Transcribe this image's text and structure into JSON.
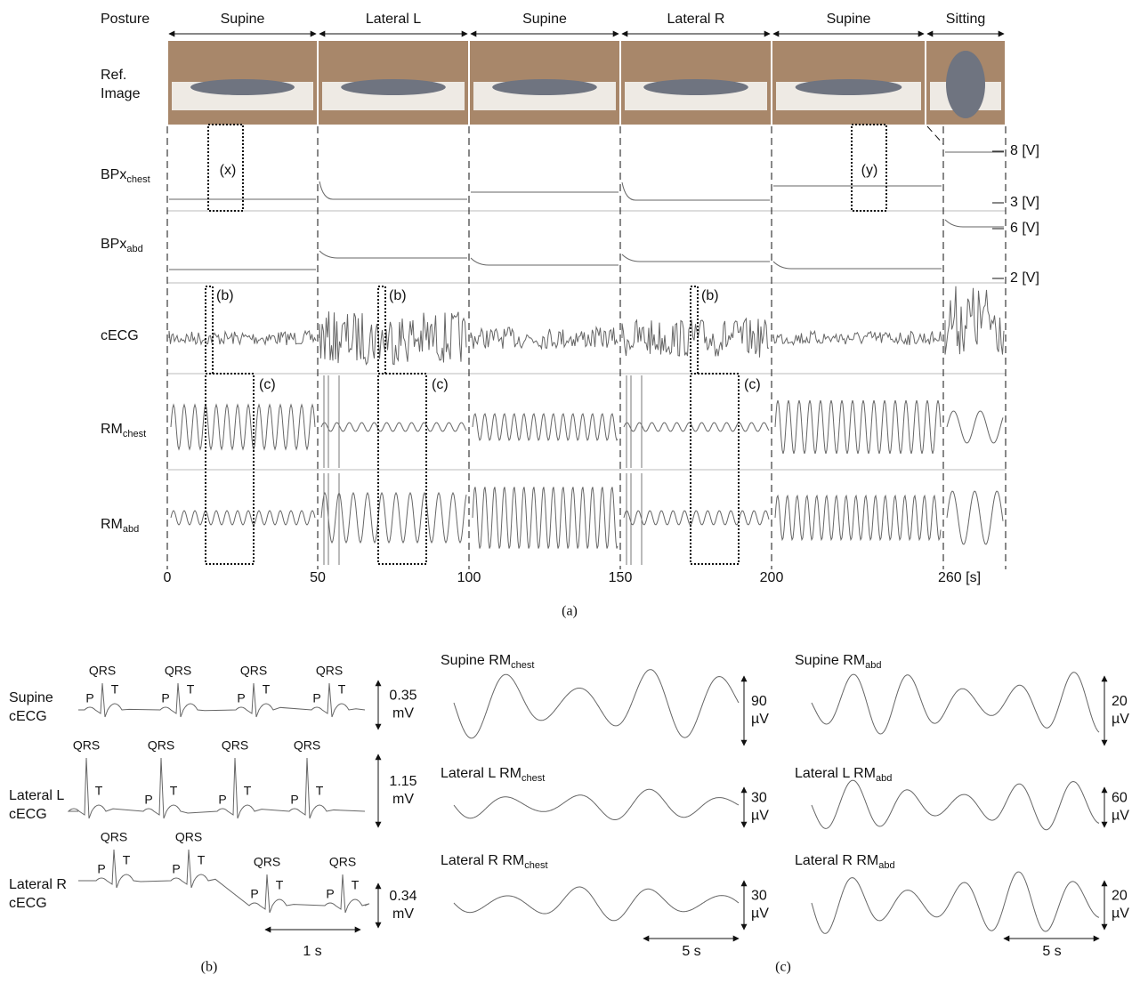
{
  "figure_a": {
    "posture_label": "Posture",
    "postures": [
      "Supine",
      "Lateral L",
      "Supine",
      "Lateral R",
      "Supine",
      "Sitting"
    ],
    "ref_image_label": [
      "Ref.",
      "Image"
    ],
    "rows": [
      {
        "main": "BPx",
        "sub": "chest"
      },
      {
        "main": "BPx",
        "sub": "abd"
      },
      {
        "main": "cECG",
        "sub": ""
      },
      {
        "main": "RM",
        "sub": "chest"
      },
      {
        "main": "RM",
        "sub": "abd"
      }
    ],
    "annotation_x": "(x)",
    "annotation_y": "(y)",
    "annotations_b": [
      "(b)",
      "(b)",
      "(b)"
    ],
    "annotations_c": [
      "(c)",
      "(c)",
      "(c)"
    ],
    "voltage_labels": [
      "8 [V]",
      "3 [V]",
      "6 [V]",
      "2 [V]"
    ],
    "time_ticks": [
      "0",
      "50",
      "100",
      "150",
      "200",
      "260 [s]"
    ],
    "caption": "(a)"
  },
  "figure_b": {
    "traces": [
      {
        "name": [
          "Supine",
          "cECG"
        ],
        "scale": [
          "0.35",
          "mV"
        ],
        "beats": [
          {
            "P": "P",
            "QRS": "QRS",
            "T": "T"
          },
          {
            "P": "P",
            "QRS": "QRS",
            "T": "T"
          },
          {
            "P": "P",
            "QRS": "QRS",
            "T": "T"
          },
          {
            "P": "P",
            "QRS": "QRS",
            "T": "T"
          }
        ]
      },
      {
        "name": [
          "Lateral L",
          "cECG"
        ],
        "scale": [
          "1.15",
          "mV"
        ],
        "beats": [
          {
            "P": "",
            "QRS": "QRS",
            "T": "T"
          },
          {
            "P": "P",
            "QRS": "QRS",
            "T": "T"
          },
          {
            "P": "P",
            "QRS": "QRS",
            "T": "T"
          },
          {
            "P": "P",
            "QRS": "QRS",
            "T": "T"
          }
        ]
      },
      {
        "name": [
          "Lateral R",
          "cECG"
        ],
        "scale": [
          "0.34",
          "mV"
        ],
        "beats": [
          {
            "P": "P",
            "QRS": "QRS",
            "T": "T"
          },
          {
            "P": "P",
            "QRS": "QRS",
            "T": "T"
          },
          {
            "P": "P",
            "QRS": "QRS",
            "T": "T"
          },
          {
            "P": "P",
            "QRS": "QRS",
            "T": "T"
          }
        ]
      }
    ],
    "time_scale": "1 s",
    "caption": "(b)"
  },
  "figure_c": {
    "chest": [
      {
        "posture": "Supine",
        "main": "RM",
        "sub": "chest",
        "scale": [
          "90",
          "µV"
        ]
      },
      {
        "posture": "Lateral L",
        "main": "RM",
        "sub": "chest",
        "scale": [
          "30",
          "µV"
        ]
      },
      {
        "posture": "Lateral R",
        "main": "RM",
        "sub": "chest",
        "scale": [
          "30",
          "µV"
        ]
      }
    ],
    "abd": [
      {
        "posture": "Supine",
        "main": "RM",
        "sub": "abd",
        "scale": [
          "20",
          "µV"
        ]
      },
      {
        "posture": "Lateral L",
        "main": "RM",
        "sub": "abd",
        "scale": [
          "60",
          "µV"
        ]
      },
      {
        "posture": "Lateral R",
        "main": "RM",
        "sub": "abd",
        "scale": [
          "20",
          "µV"
        ]
      }
    ],
    "time_scale": [
      "5 s",
      "5 s"
    ],
    "caption": "(c)"
  }
}
